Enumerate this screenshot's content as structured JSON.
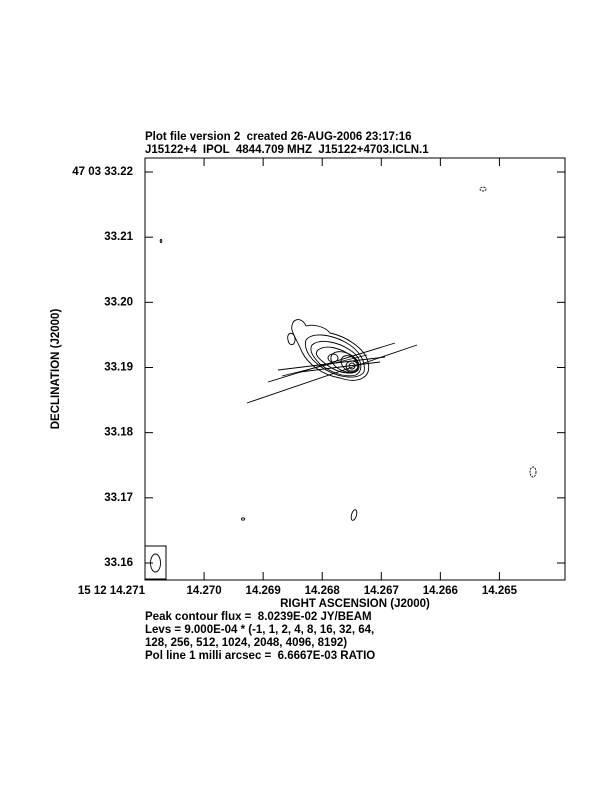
{
  "chart_data": {
    "type": "contour",
    "title": "Plot file version 2  created 26-AUG-2006 23:17:16",
    "subtitle": "J15122+4  IPOL  4844.709 MHZ  J15122+4703.ICLN.1",
    "x_label": "RIGHT ASCENSION (J2000)",
    "y_label": "DECLINATION (J2000)",
    "xlim": [
      14.271,
      14.26389
    ],
    "ylim": [
      33.15739,
      33.22215
    ],
    "xticks": [
      {
        "value": 14.271,
        "label": "15 12 14.271"
      },
      {
        "value": 14.27,
        "label": "14.270"
      },
      14.269,
      14.268,
      14.267,
      14.266,
      14.265
    ],
    "yticks": [
      {
        "value": 33.22,
        "label": "47 03 33.22"
      },
      33.21,
      {
        "value": 33.2,
        "label": "33.20"
      },
      33.19,
      33.18,
      33.17,
      33.16
    ],
    "annotations": [
      "Peak contour flux =  8.0239E-02 JY/BEAM",
      "Levs = 9.000E-04 * (-1, 1, 2, 4, 8, 16, 32, 64,",
      "128, 256, 512, 1024, 2048, 4096, 8192)",
      "Pol line 1 milli arcsec =  6.6667E-03 RATIO"
    ]
  }
}
